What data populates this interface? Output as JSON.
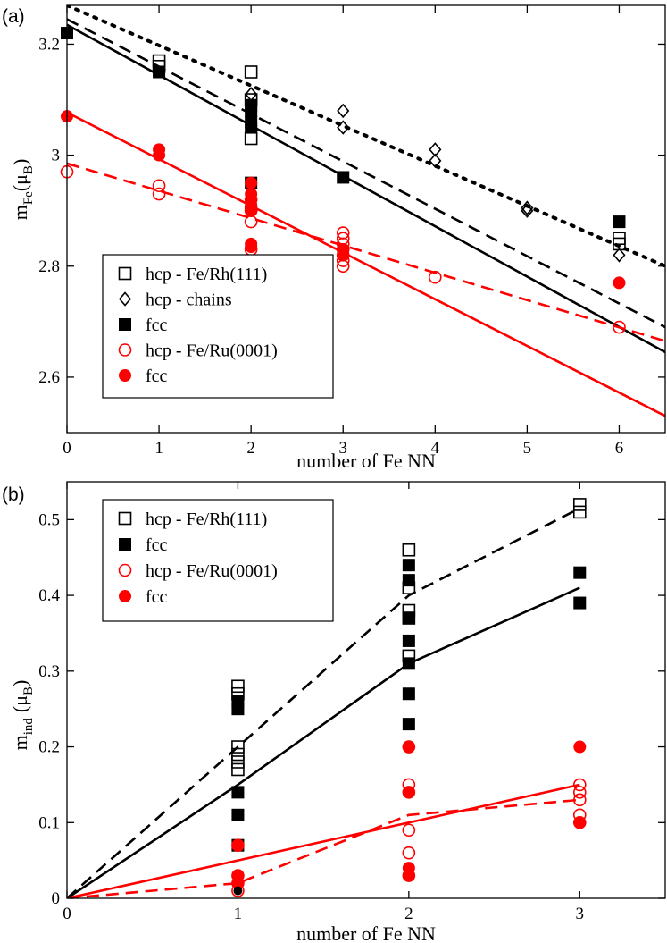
{
  "chart_data": [
    {
      "panel": "(a)",
      "type": "scatter",
      "xlabel": "number of Fe NN",
      "ylabel_main": "m",
      "ylabel_sub": "Fe",
      "ylabel_unit_open": "(μ",
      "ylabel_unit_sub": "B",
      "ylabel_unit_close": ")",
      "xlim": [
        0,
        6.5
      ],
      "ylim": [
        2.5,
        3.27
      ],
      "xticks": [
        0,
        1,
        2,
        3,
        4,
        5,
        6
      ],
      "xtick_labels": [
        "0",
        "1",
        "2",
        "3",
        "4",
        "5",
        "6"
      ],
      "yticks": [
        2.6,
        2.8,
        3.0,
        3.2
      ],
      "ytick_labels": [
        "2.6",
        "2.8",
        "3",
        "3.2"
      ],
      "series": [
        {
          "name": "hcp - Fe/Rh(111)",
          "marker": "square-open",
          "color": "#000000",
          "x": [
            1,
            1,
            2,
            2,
            2,
            6,
            6
          ],
          "y": [
            3.17,
            3.16,
            3.15,
            3.1,
            3.03,
            2.85,
            2.84
          ]
        },
        {
          "name": "hcp - chains",
          "marker": "diamond-open",
          "color": "#000000",
          "x": [
            2,
            3,
            3,
            4,
            4,
            5,
            5,
            6
          ],
          "y": [
            3.11,
            3.08,
            3.05,
            3.01,
            2.99,
            2.905,
            2.9,
            2.82
          ]
        },
        {
          "name": "fcc",
          "marker": "square-filled",
          "color": "#000000",
          "x": [
            0,
            1,
            2,
            2,
            2,
            2,
            2,
            3,
            6
          ],
          "y": [
            3.22,
            3.15,
            3.09,
            3.08,
            3.06,
            3.05,
            2.95,
            2.96,
            2.88
          ]
        },
        {
          "name": "hcp - Fe/Ru(0001)",
          "marker": "circle-open",
          "color": "#ff0000",
          "x": [
            0,
            1,
            1,
            2,
            2,
            2,
            2,
            2,
            3,
            3,
            3,
            3,
            3,
            3,
            3,
            4,
            6
          ],
          "y": [
            2.97,
            2.945,
            2.93,
            2.92,
            2.905,
            2.9,
            2.88,
            2.83,
            2.86,
            2.85,
            2.84,
            2.83,
            2.82,
            2.81,
            2.8,
            2.78,
            2.69
          ]
        },
        {
          "name": "fcc",
          "marker": "circle-filled",
          "color": "#ff0000",
          "x": [
            0,
            1,
            1,
            2,
            2,
            2,
            2,
            2,
            2,
            2,
            3,
            3,
            6
          ],
          "y": [
            3.07,
            3.01,
            3.0,
            2.95,
            2.93,
            2.92,
            2.91,
            2.9,
            2.84,
            2.835,
            2.83,
            2.82,
            2.77
          ]
        }
      ],
      "fit_lines": [
        {
          "style": "dotted",
          "color": "#000000",
          "x": [
            0,
            6.5
          ],
          "y": [
            3.27,
            2.8
          ]
        },
        {
          "style": "dashed",
          "color": "#000000",
          "x": [
            0,
            6.5
          ],
          "y": [
            3.245,
            2.69
          ]
        },
        {
          "style": "solid",
          "color": "#000000",
          "x": [
            0,
            6.5
          ],
          "y": [
            3.235,
            2.645
          ]
        },
        {
          "style": "solid",
          "color": "#ff0000",
          "x": [
            0,
            6.5
          ],
          "y": [
            3.077,
            2.53
          ]
        },
        {
          "style": "dashed",
          "color": "#ff0000",
          "x": [
            0,
            6.5
          ],
          "y": [
            2.985,
            2.665
          ]
        }
      ],
      "legend": [
        "hcp - Fe/Rh(111)",
        "hcp - chains",
        "fcc",
        "hcp - Fe/Ru(0001)",
        "fcc"
      ],
      "legend_location": "lower-left"
    },
    {
      "panel": "(b)",
      "type": "scatter",
      "xlabel": "number of Fe NN",
      "ylabel_main": "m",
      "ylabel_sub": "ind",
      "ylabel_unit_open": "(μ",
      "ylabel_unit_sub": "B",
      "ylabel_unit_close": ")",
      "xlim": [
        0,
        3.5
      ],
      "ylim": [
        0,
        0.55
      ],
      "xticks": [
        0,
        1,
        2,
        3
      ],
      "xtick_labels": [
        "0",
        "1",
        "2",
        "3"
      ],
      "yticks": [
        0,
        0.1,
        0.2,
        0.3,
        0.4,
        0.5
      ],
      "ytick_labels": [
        "0",
        "0.1",
        "0.2",
        "0.3",
        "0.4",
        "0.5"
      ],
      "series": [
        {
          "name": "hcp - Fe/Rh(111)",
          "marker": "square-open",
          "color": "#000000",
          "x": [
            1,
            1,
            1,
            1,
            1,
            1,
            2,
            2,
            2,
            2,
            2,
            3,
            3
          ],
          "y": [
            0.28,
            0.27,
            0.2,
            0.19,
            0.18,
            0.17,
            0.46,
            0.41,
            0.38,
            0.37,
            0.32,
            0.52,
            0.51
          ]
        },
        {
          "name": "fcc",
          "marker": "square-filled",
          "color": "#000000",
          "x": [
            1,
            1,
            1,
            1,
            1,
            2,
            2,
            2,
            2,
            2,
            2,
            2,
            3,
            3
          ],
          "y": [
            0.26,
            0.25,
            0.14,
            0.11,
            0.07,
            0.44,
            0.42,
            0.37,
            0.34,
            0.31,
            0.27,
            0.23,
            0.43,
            0.39
          ]
        },
        {
          "name": "hcp - Fe/Ru(0001)",
          "marker": "circle-open",
          "color": "#ff0000",
          "x": [
            1,
            1,
            1,
            1,
            2,
            2,
            2,
            2,
            2,
            2,
            3,
            3,
            3,
            3,
            3
          ],
          "y": [
            0.07,
            0.03,
            0.02,
            0.01,
            0.2,
            0.15,
            0.14,
            0.09,
            0.06,
            0.03,
            0.15,
            0.14,
            0.13,
            0.11,
            0.1
          ]
        },
        {
          "name": "fcc",
          "marker": "circle-filled",
          "color": "#ff0000",
          "x": [
            1,
            1,
            1,
            2,
            2,
            2,
            2,
            3,
            3
          ],
          "y": [
            0.07,
            0.03,
            0.02,
            0.2,
            0.14,
            0.04,
            0.03,
            0.2,
            0.1
          ]
        }
      ],
      "fit_lines": [
        {
          "style": "dashed",
          "color": "#000000",
          "x": [
            0,
            1,
            2,
            3
          ],
          "y": [
            0,
            0.2,
            0.4,
            0.515
          ]
        },
        {
          "style": "solid",
          "color": "#000000",
          "x": [
            0,
            1,
            2,
            3
          ],
          "y": [
            0,
            0.15,
            0.31,
            0.41
          ]
        },
        {
          "style": "solid",
          "color": "#ff0000",
          "x": [
            0,
            1,
            2,
            3
          ],
          "y": [
            0,
            0.05,
            0.1,
            0.15
          ]
        },
        {
          "style": "dashed",
          "color": "#ff0000",
          "x": [
            0,
            1,
            2,
            3
          ],
          "y": [
            0,
            0.02,
            0.11,
            0.13
          ]
        }
      ],
      "extra_points": [
        {
          "marker": "circle-filled-small",
          "color": "#000000",
          "x": 1,
          "y": 0.01
        }
      ],
      "legend": [
        "hcp - Fe/Rh(111)",
        "fcc",
        "hcp - Fe/Ru(0001)",
        "fcc"
      ],
      "legend_location": "upper-left"
    }
  ]
}
